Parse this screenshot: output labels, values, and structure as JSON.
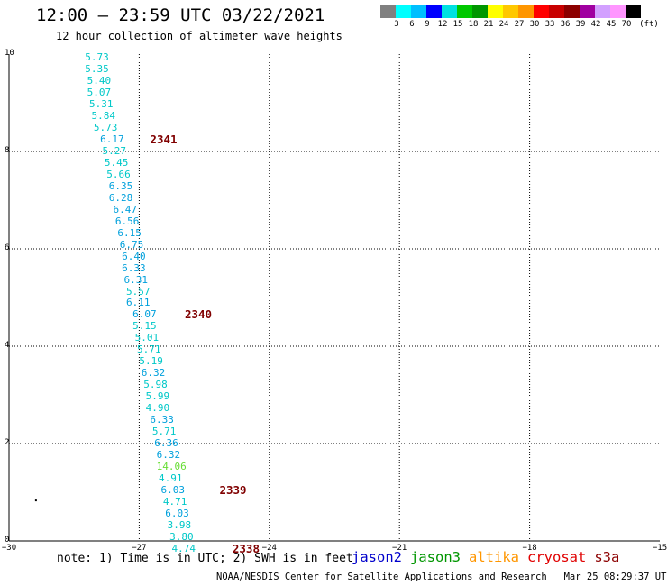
{
  "header": {
    "title": "12:00 – 23:59 UTC 03/22/2021",
    "subtitle": "12 hour collection of altimeter wave heights"
  },
  "legend": {
    "colors": [
      "#808080",
      "#00ffff",
      "#00bfff",
      "#0000ff",
      "#00e1e1",
      "#00c800",
      "#009600",
      "#ffff00",
      "#ffc800",
      "#ff9600",
      "#ff0000",
      "#c80000",
      "#8c0000",
      "#a000a0",
      "#d2a0ff",
      "#ff96ff",
      "#000000"
    ],
    "labels": [
      "3",
      "6",
      "9",
      "12",
      "15",
      "18",
      "21",
      "24",
      "27",
      "30",
      "33",
      "36",
      "39",
      "42",
      "45",
      "70"
    ],
    "unit": "(ft)"
  },
  "axes": {
    "x_ticks": [
      "−30",
      "−27",
      "−24",
      "−21",
      "−18",
      "−15"
    ],
    "y_ticks": [
      "0",
      "2",
      "4",
      "6",
      "8",
      "10"
    ],
    "grid_color": "#000000"
  },
  "observations": [
    {
      "lon": -28.25,
      "lat": 9.92,
      "swh": "5.73",
      "color": "#00c8c8"
    },
    {
      "lon": -28.25,
      "lat": 9.68,
      "swh": "5.35",
      "color": "#00c8c8"
    },
    {
      "lon": -28.2,
      "lat": 9.44,
      "swh": "5.40",
      "color": "#00c8c8"
    },
    {
      "lon": -28.2,
      "lat": 9.2,
      "swh": "5.07",
      "color": "#00c8c8"
    },
    {
      "lon": -28.15,
      "lat": 8.96,
      "swh": "5.31",
      "color": "#00c8c8"
    },
    {
      "lon": -28.1,
      "lat": 8.72,
      "swh": "5.84",
      "color": "#00c8c8"
    },
    {
      "lon": -28.05,
      "lat": 8.48,
      "swh": "5.73",
      "color": "#00c8c8"
    },
    {
      "lon": -27.9,
      "lat": 8.24,
      "swh": "6.17",
      "color": "#00a0dc"
    },
    {
      "lon": -27.85,
      "lat": 8.0,
      "swh": "5.27",
      "color": "#00c8c8"
    },
    {
      "lon": -27.8,
      "lat": 7.76,
      "swh": "5.45",
      "color": "#00c8c8"
    },
    {
      "lon": -27.75,
      "lat": 7.52,
      "swh": "5.66",
      "color": "#00c8c8"
    },
    {
      "lon": -27.7,
      "lat": 7.28,
      "swh": "6.35",
      "color": "#00a0dc"
    },
    {
      "lon": -27.7,
      "lat": 7.04,
      "swh": "6.28",
      "color": "#00a0dc"
    },
    {
      "lon": -27.6,
      "lat": 6.8,
      "swh": "6.47",
      "color": "#00a0dc"
    },
    {
      "lon": -27.55,
      "lat": 6.56,
      "swh": "6.56",
      "color": "#00a0dc"
    },
    {
      "lon": -27.5,
      "lat": 6.32,
      "swh": "6.15",
      "color": "#00a0dc"
    },
    {
      "lon": -27.45,
      "lat": 6.08,
      "swh": "6.75",
      "color": "#00a0dc"
    },
    {
      "lon": -27.4,
      "lat": 5.84,
      "swh": "6.40",
      "color": "#00a0dc"
    },
    {
      "lon": -27.4,
      "lat": 5.6,
      "swh": "6.33",
      "color": "#00a0dc"
    },
    {
      "lon": -27.35,
      "lat": 5.36,
      "swh": "6.31",
      "color": "#00a0dc"
    },
    {
      "lon": -27.3,
      "lat": 5.12,
      "swh": "5.57",
      "color": "#00c8c8"
    },
    {
      "lon": -27.3,
      "lat": 4.88,
      "swh": "6.11",
      "color": "#00a0dc"
    },
    {
      "lon": -27.15,
      "lat": 4.64,
      "swh": "6.07",
      "color": "#00a0dc"
    },
    {
      "lon": -27.15,
      "lat": 4.4,
      "swh": "5.15",
      "color": "#00c8c8"
    },
    {
      "lon": -27.1,
      "lat": 4.16,
      "swh": "5.01",
      "color": "#00c8c8"
    },
    {
      "lon": -27.05,
      "lat": 3.92,
      "swh": "5.71",
      "color": "#00c8c8"
    },
    {
      "lon": -27.0,
      "lat": 3.68,
      "swh": "5.19",
      "color": "#00c8c8"
    },
    {
      "lon": -26.95,
      "lat": 3.44,
      "swh": "6.32",
      "color": "#00a0dc"
    },
    {
      "lon": -26.9,
      "lat": 3.2,
      "swh": "5.98",
      "color": "#00c8c8"
    },
    {
      "lon": -26.85,
      "lat": 2.96,
      "swh": "5.99",
      "color": "#00c8c8"
    },
    {
      "lon": -26.85,
      "lat": 2.72,
      "swh": "4.90",
      "color": "#00c8c8"
    },
    {
      "lon": -26.75,
      "lat": 2.48,
      "swh": "6.33",
      "color": "#00a0dc"
    },
    {
      "lon": -26.7,
      "lat": 2.24,
      "swh": "5.71",
      "color": "#00c8c8"
    },
    {
      "lon": -26.65,
      "lat": 2.0,
      "swh": "6.36",
      "color": "#00a0dc"
    },
    {
      "lon": -26.6,
      "lat": 1.76,
      "swh": "6.32",
      "color": "#00a0dc"
    },
    {
      "lon": -26.6,
      "lat": 1.52,
      "swh": "14.06",
      "color": "#66dd33"
    },
    {
      "lon": -26.55,
      "lat": 1.28,
      "swh": "4.91",
      "color": "#00c8c8"
    },
    {
      "lon": -26.5,
      "lat": 1.04,
      "swh": "6.03",
      "color": "#00a0dc"
    },
    {
      "lon": -26.45,
      "lat": 0.8,
      "swh": "4.71",
      "color": "#00c8c8"
    },
    {
      "lon": -26.4,
      "lat": 0.56,
      "swh": "6.03",
      "color": "#00a0dc"
    },
    {
      "lon": -26.35,
      "lat": 0.32,
      "swh": "3.98",
      "color": "#00c8c8"
    },
    {
      "lon": -26.3,
      "lat": 0.08,
      "swh": "3.80",
      "color": "#00c8c8"
    },
    {
      "lon": -26.25,
      "lat": -0.16,
      "swh": "4.74",
      "color": "#00c8c8"
    }
  ],
  "pass_times": [
    {
      "lon": -26.75,
      "lat": 8.24,
      "text": "2341"
    },
    {
      "lon": -25.95,
      "lat": 4.64,
      "text": "2340"
    },
    {
      "lon": -25.15,
      "lat": 1.04,
      "text": "2339"
    },
    {
      "lon": -24.85,
      "lat": -0.16,
      "text": "2338"
    }
  ],
  "note": "note: 1) Time is in UTC; 2) SWH is in feet",
  "satellites": [
    {
      "name": "jason2",
      "color": "#0000cc"
    },
    {
      "name": "jason3",
      "color": "#009600"
    },
    {
      "name": "altika",
      "color": "#ff9600"
    },
    {
      "name": "cryosat",
      "color": "#e00000"
    },
    {
      "name": "s3a",
      "color": "#8c0000"
    }
  ],
  "credit": "NOAA/NESDIS Center for Satellite Applications and Research   Mar 25 08:29:37 UTC 2021"
}
